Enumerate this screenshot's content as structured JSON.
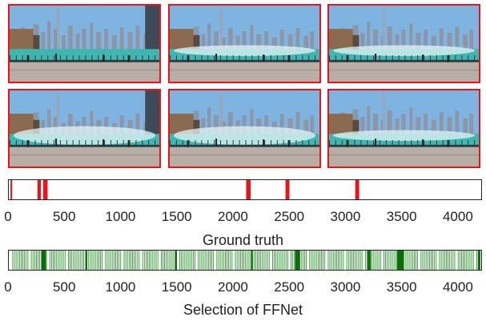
{
  "frames": [
    {
      "id": "keyframe-1",
      "water": "calm"
    },
    {
      "id": "keyframe-2",
      "water": "fountain-low"
    },
    {
      "id": "keyframe-3",
      "water": "fountain-low"
    },
    {
      "id": "keyframe-4",
      "water": "fountain-high"
    },
    {
      "id": "keyframe-5",
      "water": "fountain-high"
    },
    {
      "id": "keyframe-6",
      "water": "fountain-low"
    }
  ],
  "colors": {
    "frame_border": "#e8141b",
    "ground_truth": "#e8141b",
    "selection": "#1a8a1a",
    "selection_thick": "#0a6e0a",
    "sky": "#7fb4e0",
    "water": "#3fb6b0",
    "plaza": "#b9aea6"
  },
  "chart_data": [
    {
      "type": "bar",
      "name": "ground-truth",
      "caption": "Ground truth",
      "xlim": [
        0,
        4200
      ],
      "ticks": [
        "0",
        "500",
        "1000",
        "1500",
        "2000",
        "2500",
        "3000",
        "3500",
        "4000"
      ],
      "segments": [
        [
          15,
          30
        ],
        [
          255,
          285
        ],
        [
          305,
          345
        ],
        [
          2110,
          2150
        ],
        [
          2460,
          2495
        ],
        [
          3080,
          3115
        ]
      ]
    },
    {
      "type": "bar",
      "name": "selection",
      "caption": "Selection of FFNet",
      "xlim": [
        0,
        4200
      ],
      "ticks": [
        "0",
        "500",
        "1000",
        "1500",
        "2000",
        "2500",
        "3000",
        "3500",
        "4000"
      ],
      "thick_segments": [
        [
          290,
          330
        ],
        [
          680,
          695
        ],
        [
          1480,
          1495
        ],
        [
          2155,
          2170
        ],
        [
          2545,
          2590
        ],
        [
          3190,
          3220
        ],
        [
          3450,
          3510
        ],
        [
          4170,
          4190
        ]
      ]
    }
  ]
}
